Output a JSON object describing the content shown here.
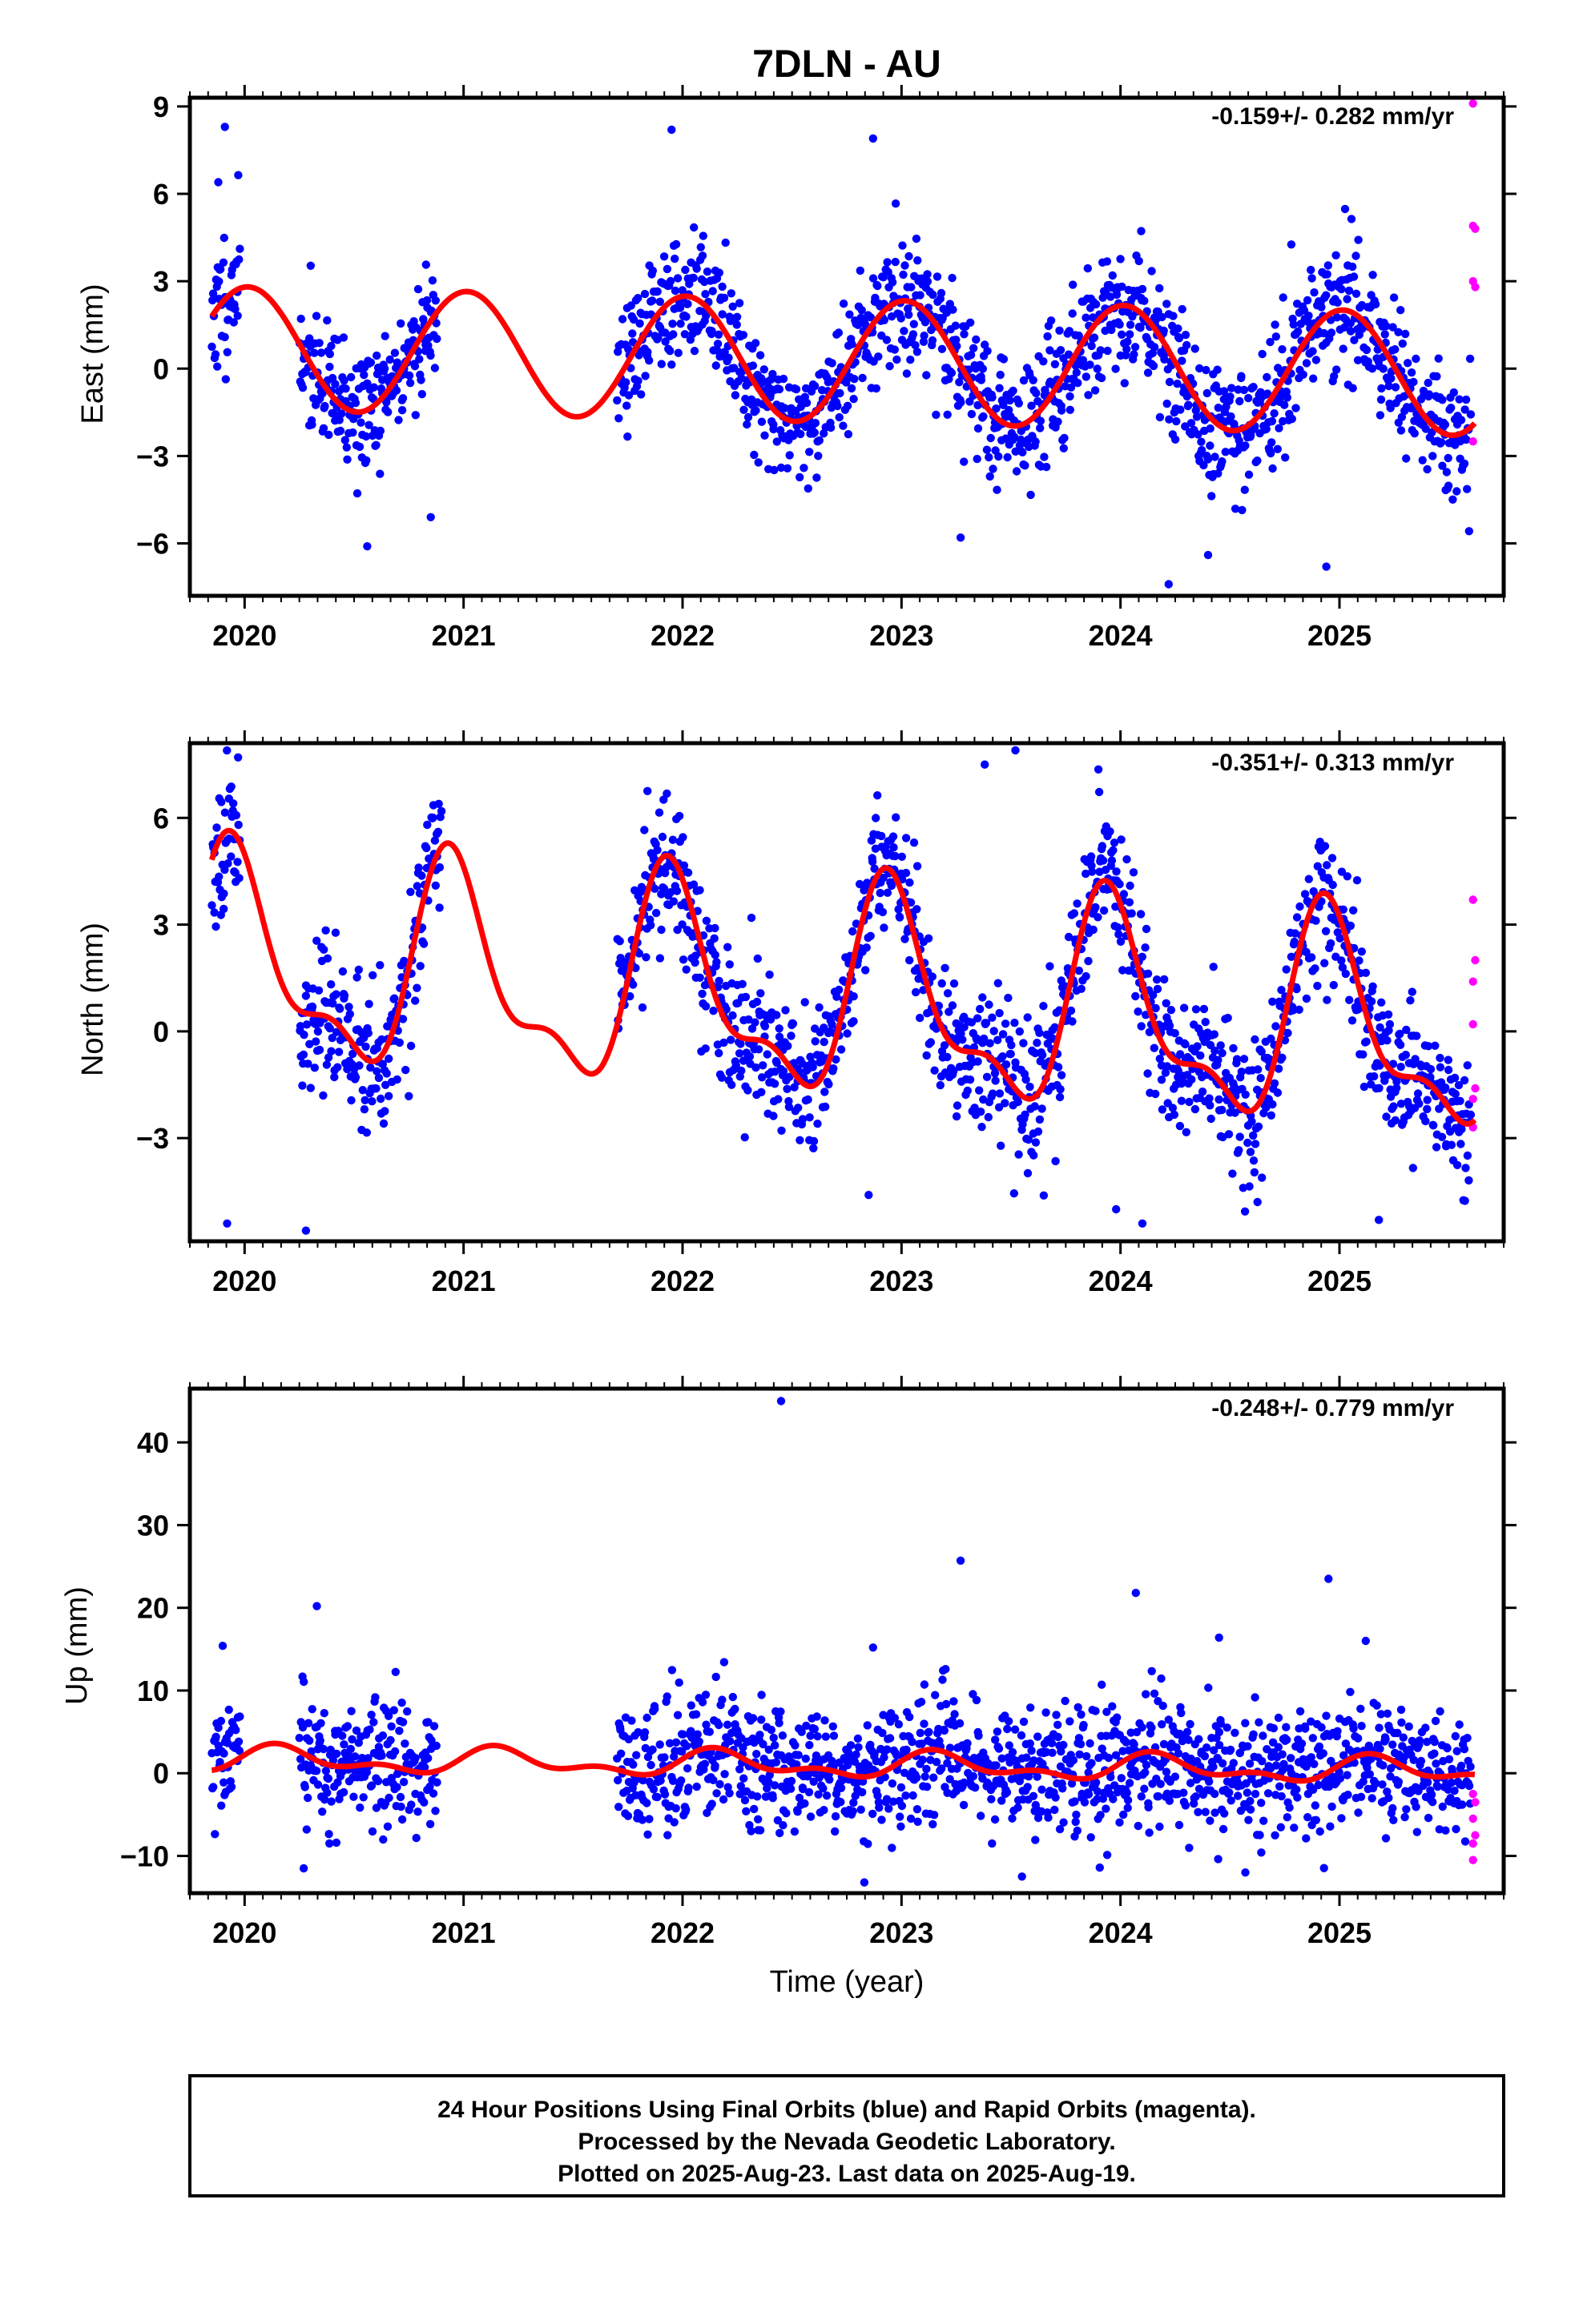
{
  "chart_data": [
    {
      "type": "scatter",
      "title": "7DLN - AU",
      "ylabel": "East (mm)",
      "xlabel": "",
      "xlim": [
        2019.75,
        2025.75
      ],
      "ylim": [
        -7.8,
        9.3
      ],
      "xticks": [
        2020,
        2021,
        2022,
        2023,
        2024,
        2025
      ],
      "yticks": [
        9,
        6,
        3,
        0,
        -3,
        -6
      ],
      "ytick_labels": [
        "9",
        "6",
        "3",
        "0",
        "−3",
        "−6"
      ],
      "rate_text": "-0.159+/- 0.282 mm/yr",
      "grid": false,
      "model": {
        "offset": 0.3,
        "trend": -0.159,
        "annual": [
          2.1,
          0.2
        ],
        "semiannual": [
          0.0,
          0.0
        ]
      },
      "series": [
        {
          "name": "Final Orbits",
          "color": "#0000ff",
          "segments": [
            [
              2019.85,
              2019.98
            ],
            [
              2020.25,
              2020.88
            ],
            [
              2021.7,
              2025.6
            ]
          ],
          "scatter_sd": 1.1,
          "n_per_year": 330,
          "seed": 11,
          "outliers": [
            [
              2019.91,
              8.3
            ],
            [
              2019.88,
              6.4
            ],
            [
              2020.56,
              -6.1
            ],
            [
              2020.85,
              -5.1
            ],
            [
              2021.95,
              8.2
            ],
            [
              2022.87,
              7.9
            ],
            [
              2023.27,
              -5.8
            ],
            [
              2024.22,
              -7.4
            ],
            [
              2024.94,
              -6.8
            ],
            [
              2024.4,
              -6.4
            ]
          ]
        },
        {
          "name": "Rapid Orbits",
          "color": "#ff00ff",
          "points": [
            [
              2025.61,
              9.1
            ],
            [
              2025.61,
              4.9
            ],
            [
              2025.62,
              4.8
            ],
            [
              2025.61,
              3.0
            ],
            [
              2025.62,
              2.8
            ],
            [
              2025.61,
              -2.5
            ]
          ]
        }
      ]
    },
    {
      "type": "scatter",
      "ylabel": "North (mm)",
      "xlabel": "",
      "xlim": [
        2019.75,
        2025.75
      ],
      "ylim": [
        -5.9,
        8.1
      ],
      "xticks": [
        2020,
        2021,
        2022,
        2023,
        2024,
        2025
      ],
      "yticks": [
        6,
        3,
        0,
        -3
      ],
      "ytick_labels": [
        "6",
        "3",
        "0",
        "−3"
      ],
      "rate_text": "-0.351+/- 0.313 mm/yr",
      "grid": false,
      "model": {
        "offset": 1.0,
        "trend": -0.351,
        "annual": [
          2.6,
          -0.7
        ],
        "semiannual": [
          0.5,
          -1.0
        ]
      },
      "series": [
        {
          "name": "Final Orbits",
          "color": "#0000ff",
          "segments": [
            [
              2019.85,
              2019.98
            ],
            [
              2020.25,
              2020.9
            ],
            [
              2021.7,
              2025.6
            ]
          ],
          "scatter_sd": 1.0,
          "n_per_year": 330,
          "seed": 23,
          "outliers": [
            [
              2020.28,
              -5.6
            ],
            [
              2019.92,
              -5.4
            ],
            [
              2023.52,
              7.9
            ],
            [
              2023.38,
              7.5
            ],
            [
              2024.1,
              -5.4
            ],
            [
              2023.98,
              -5.0
            ],
            [
              2025.18,
              -5.3
            ],
            [
              2022.85,
              -4.6
            ]
          ]
        },
        {
          "name": "Rapid Orbits",
          "color": "#ff00ff",
          "points": [
            [
              2025.61,
              3.7
            ],
            [
              2025.62,
              2.0
            ],
            [
              2025.61,
              1.4
            ],
            [
              2025.61,
              0.2
            ],
            [
              2025.62,
              -1.6
            ],
            [
              2025.61,
              -1.9
            ],
            [
              2025.61,
              -2.7
            ]
          ]
        }
      ]
    },
    {
      "type": "scatter",
      "ylabel": "Up (mm)",
      "xlabel": "Time (year)",
      "xlim": [
        2019.75,
        2025.75
      ],
      "ylim": [
        -14.5,
        46.5
      ],
      "xticks": [
        2020,
        2021,
        2022,
        2023,
        2024,
        2025
      ],
      "yticks": [
        40,
        30,
        20,
        10,
        0,
        -10
      ],
      "ytick_labels": [
        "40",
        "30",
        "20",
        "10",
        "0",
        "−10"
      ],
      "rate_text": "-0.248+/- 0.779 mm/yr",
      "grid": false,
      "model": {
        "offset": 1.0,
        "trend": -0.248,
        "annual": [
          0.6,
          1.1
        ],
        "semiannual": [
          0.0,
          0.8
        ]
      },
      "series": [
        {
          "name": "Final Orbits",
          "color": "#0000ff",
          "segments": [
            [
              2019.85,
              2019.98
            ],
            [
              2020.25,
              2020.88
            ],
            [
              2021.7,
              2025.6
            ]
          ],
          "scatter_sd": 3.8,
          "n_per_year": 330,
          "seed": 37,
          "outliers": [
            [
              2022.45,
              45.0
            ],
            [
              2023.27,
              25.7
            ],
            [
              2024.95,
              23.5
            ],
            [
              2024.07,
              21.8
            ],
            [
              2020.33,
              20.2
            ],
            [
              2024.45,
              16.4
            ],
            [
              2022.87,
              15.2
            ],
            [
              2025.12,
              16.0
            ],
            [
              2019.9,
              15.4
            ],
            [
              2020.27,
              -11.5
            ],
            [
              2024.57,
              -12.0
            ],
            [
              2023.55,
              -12.5
            ],
            [
              2022.83,
              -13.2
            ]
          ]
        },
        {
          "name": "Rapid Orbits",
          "color": "#ff00ff",
          "points": [
            [
              2025.61,
              -2.5
            ],
            [
              2025.62,
              -3.5
            ],
            [
              2025.61,
              -5.5
            ],
            [
              2025.62,
              -7.5
            ],
            [
              2025.61,
              -8.5
            ],
            [
              2025.61,
              -10.5
            ]
          ]
        }
      ]
    }
  ],
  "footer": {
    "line1": "24 Hour Positions Using Final Orbits (blue) and Rapid Orbits (magenta).",
    "line2": "Processed by the Nevada Geodetic Laboratory.",
    "line3": "Plotted on 2025-Aug-23. Last data on 2025-Aug-19."
  }
}
